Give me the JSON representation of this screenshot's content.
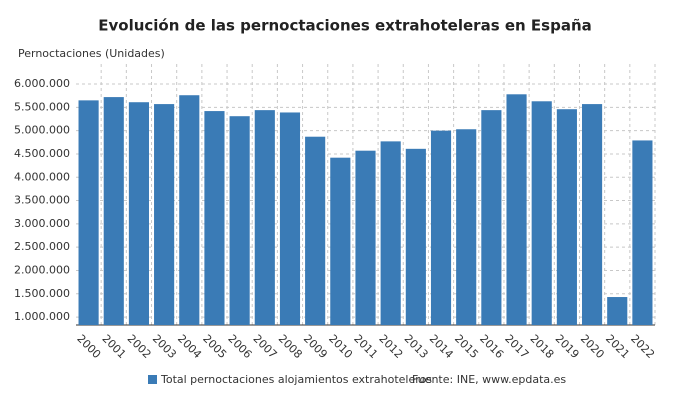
{
  "chart_data": {
    "type": "bar",
    "title": "Evolución de las pernoctaciones extrahoteleras en España",
    "y_axis_label": "Pernoctaciones (Unidades)",
    "categories": [
      "2000",
      "2001",
      "2002",
      "2003",
      "2004",
      "2005",
      "2006",
      "2007",
      "2008",
      "2009",
      "2010",
      "2011",
      "2012",
      "2013",
      "2014",
      "2015",
      "2016",
      "2017",
      "2018",
      "2019",
      "2020",
      "2021",
      "2022"
    ],
    "series": [
      {
        "name": "Total pernoctaciones alojamientos extrahoteleros",
        "color": "#3a7bb6",
        "values": [
          5650000,
          5720000,
          5610000,
          5570000,
          5760000,
          5420000,
          5310000,
          5440000,
          5390000,
          4870000,
          4420000,
          4570000,
          4770000,
          4610000,
          5000000,
          5030000,
          5440000,
          5780000,
          5630000,
          5460000,
          5570000,
          1430000,
          4790000
        ]
      }
    ],
    "ylim": [
      830000,
      6430000
    ],
    "yticks": [
      {
        "value": 1000000,
        "label": "1.000.000"
      },
      {
        "value": 1500000,
        "label": "1.500.000"
      },
      {
        "value": 2000000,
        "label": "2.000.000"
      },
      {
        "value": 2500000,
        "label": "2.500.000"
      },
      {
        "value": 3000000,
        "label": "3.000.000"
      },
      {
        "value": 3500000,
        "label": "3.500.000"
      },
      {
        "value": 4000000,
        "label": "4.000.000"
      },
      {
        "value": 4500000,
        "label": "4.500.000"
      },
      {
        "value": 5000000,
        "label": "5.000.000"
      },
      {
        "value": 5500000,
        "label": "5.500.000"
      },
      {
        "value": 6000000,
        "label": "6.000.000"
      }
    ],
    "grid": true,
    "source": "Fuente: INE, www.epdata.es"
  }
}
